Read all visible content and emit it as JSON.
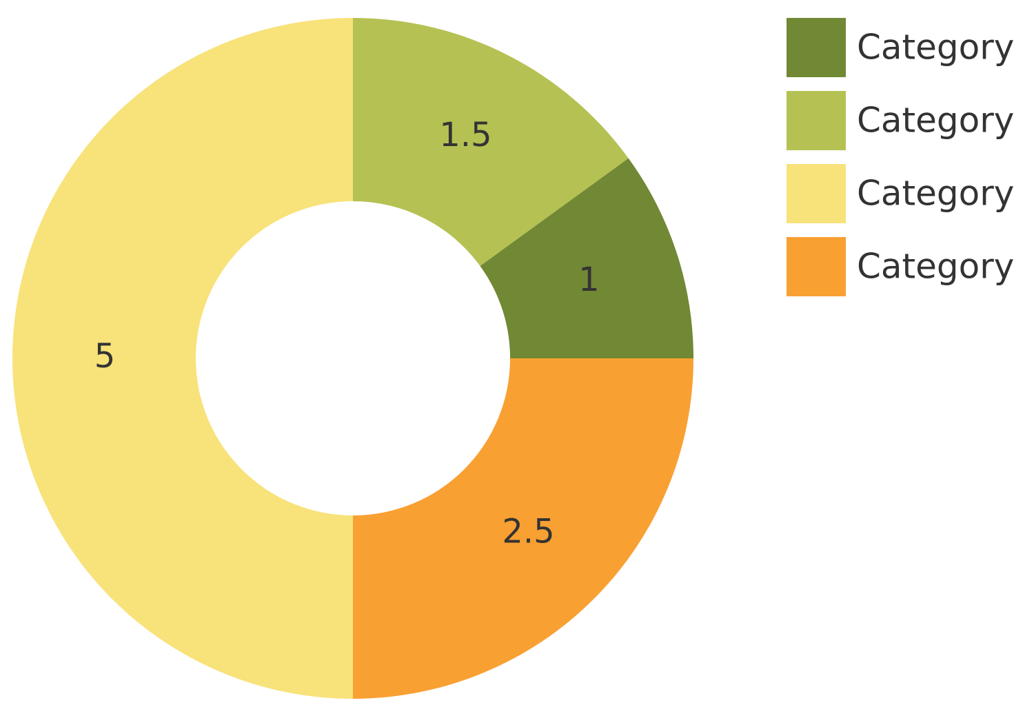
{
  "chart_data": {
    "type": "donut",
    "categories": [
      "Category",
      "Category",
      "Category",
      "Category"
    ],
    "values": [
      1,
      1.5,
      5,
      2.5
    ],
    "colors": [
      "#718835",
      "#b5c153",
      "#f8e27a",
      "#f9a033"
    ],
    "direction": "counterclockwise",
    "legend": "top-right"
  }
}
